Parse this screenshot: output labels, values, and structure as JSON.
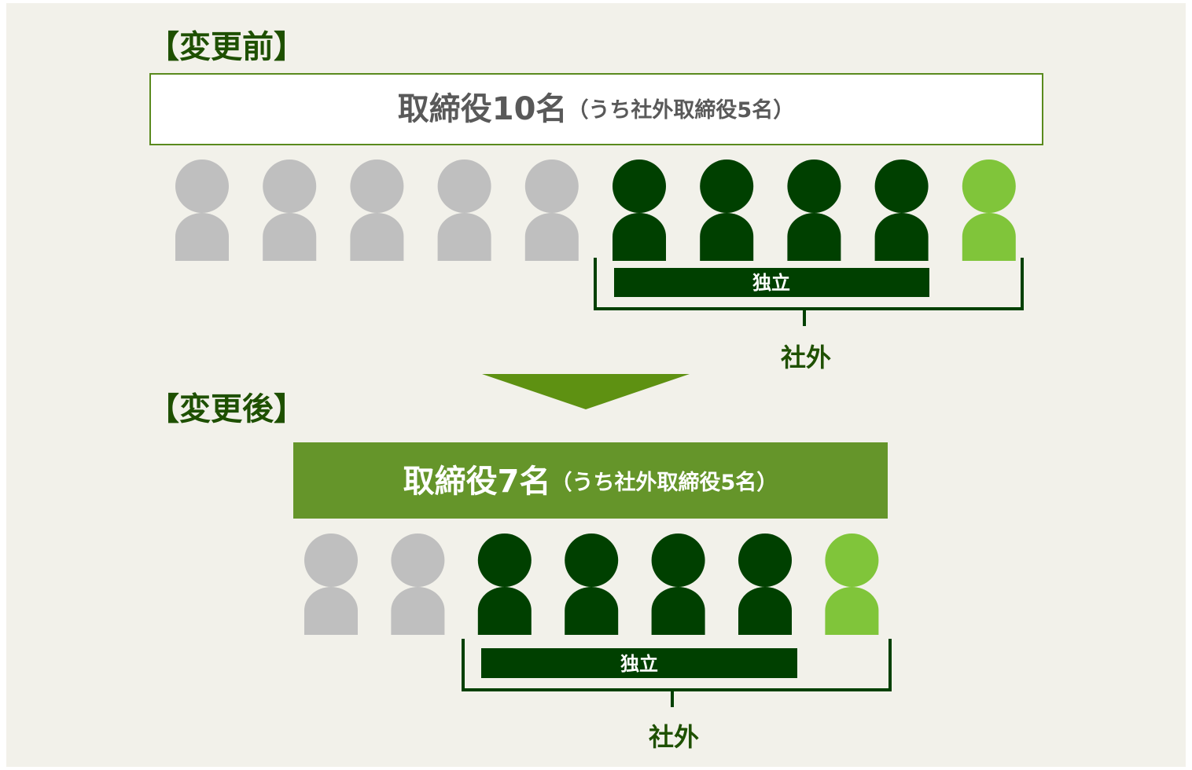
{
  "before": {
    "heading": "【変更前】",
    "title": "取締役10名",
    "subtitle": "（うち社外取締役5名）",
    "bar_label": "独立",
    "group_label": "社外"
  },
  "after": {
    "heading": "【変更後】",
    "title": "取締役7名",
    "subtitle": "（うち社外取締役5名）",
    "bar_label": "独立",
    "group_label": "社外"
  }
}
